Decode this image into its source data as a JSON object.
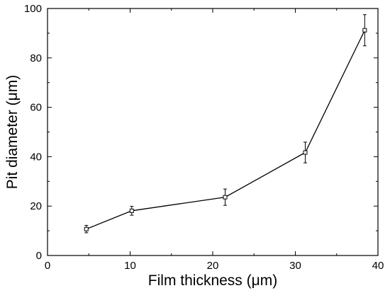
{
  "chart_data": {
    "type": "line",
    "title": "",
    "xlabel": "Film thickness (μm)",
    "ylabel": "Pit diameter (μm)",
    "xlim": [
      0,
      40
    ],
    "ylim": [
      0,
      100
    ],
    "xticks": [
      0,
      10,
      20,
      30,
      40
    ],
    "yticks": [
      0,
      20,
      40,
      60,
      80,
      100
    ],
    "grid": false,
    "legend": "none",
    "marker": "open-square",
    "line_color": "#000000",
    "series": [
      {
        "x": [
          4.7,
          10.2,
          21.5,
          31.2,
          38.4
        ],
        "y": [
          10.7,
          18.1,
          23.6,
          41.7,
          91.2
        ],
        "yerr": [
          1.5,
          1.8,
          3.3,
          4.2,
          6.3
        ]
      }
    ]
  }
}
